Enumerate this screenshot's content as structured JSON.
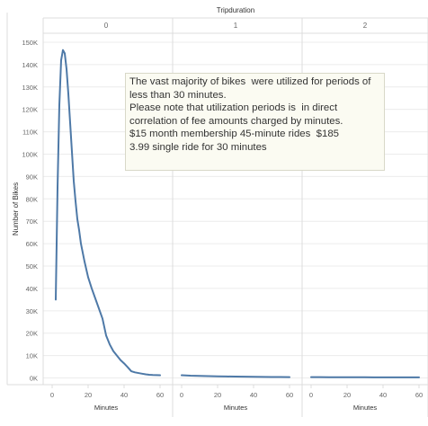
{
  "chart_data": {
    "type": "line",
    "column_header": "Tripduration",
    "panels": [
      {
        "label": "0",
        "x": [
          2,
          3,
          4,
          5,
          6,
          7,
          8,
          9,
          10,
          11,
          12,
          13,
          14,
          15,
          16,
          17,
          18,
          19,
          20,
          22,
          24,
          26,
          28,
          30,
          32,
          34,
          36,
          38,
          40,
          42,
          44,
          46,
          48,
          50,
          52,
          54,
          56,
          58,
          60
        ],
        "y": [
          35000,
          85000,
          122000,
          142000,
          146500,
          145000,
          138000,
          127000,
          114000,
          101000,
          88000,
          79000,
          71000,
          66000,
          60000,
          56000,
          52000,
          48500,
          45000,
          40000,
          35500,
          31000,
          26500,
          19000,
          15000,
          12000,
          10000,
          8000,
          6500,
          4800,
          3000,
          2500,
          2200,
          1900,
          1600,
          1400,
          1300,
          1250,
          1200
        ]
      },
      {
        "label": "1",
        "x": [
          0,
          5,
          10,
          15,
          20,
          25,
          30,
          35,
          40,
          45,
          50,
          55,
          60
        ],
        "y": [
          1200,
          1000,
          900,
          800,
          700,
          650,
          600,
          550,
          500,
          450,
          420,
          400,
          380
        ]
      },
      {
        "label": "2",
        "x": [
          0,
          5,
          10,
          15,
          20,
          25,
          30,
          35,
          40,
          45,
          50,
          55,
          60
        ],
        "y": [
          350,
          340,
          330,
          320,
          310,
          300,
          290,
          280,
          270,
          260,
          250,
          245,
          240
        ]
      }
    ],
    "ylabel": "Number of Bikes",
    "xlabel": "Minutes",
    "x_ticks": [
      0,
      20,
      40,
      60
    ],
    "xlim": [
      -5,
      65
    ],
    "y_ticks": [
      0,
      10000,
      20000,
      30000,
      40000,
      50000,
      60000,
      70000,
      80000,
      90000,
      100000,
      110000,
      120000,
      130000,
      140000,
      150000
    ],
    "y_tick_labels": [
      "0K",
      "10K",
      "20K",
      "30K",
      "40K",
      "50K",
      "60K",
      "70K",
      "80K",
      "90K",
      "100K",
      "110K",
      "120K",
      "130K",
      "140K",
      "150K"
    ],
    "ylim": [
      -3000,
      154000
    ],
    "grid": true,
    "colors": {
      "line": "#4e79a7",
      "grid": "#ececec",
      "panel_border": "#dcdcdc",
      "text": "#666666",
      "title": "#333333"
    },
    "annotation": {
      "lines": [
        "The vast majority of bikes  were utilized for periods of",
        "less than 30 minutes.",
        "Please note that utilization periods is  in direct",
        "correlation of fee amounts charged by minutes.",
        "$15 month membership 45-minute rides  $185",
        "3.99 single ride for 30 minutes"
      ]
    }
  }
}
